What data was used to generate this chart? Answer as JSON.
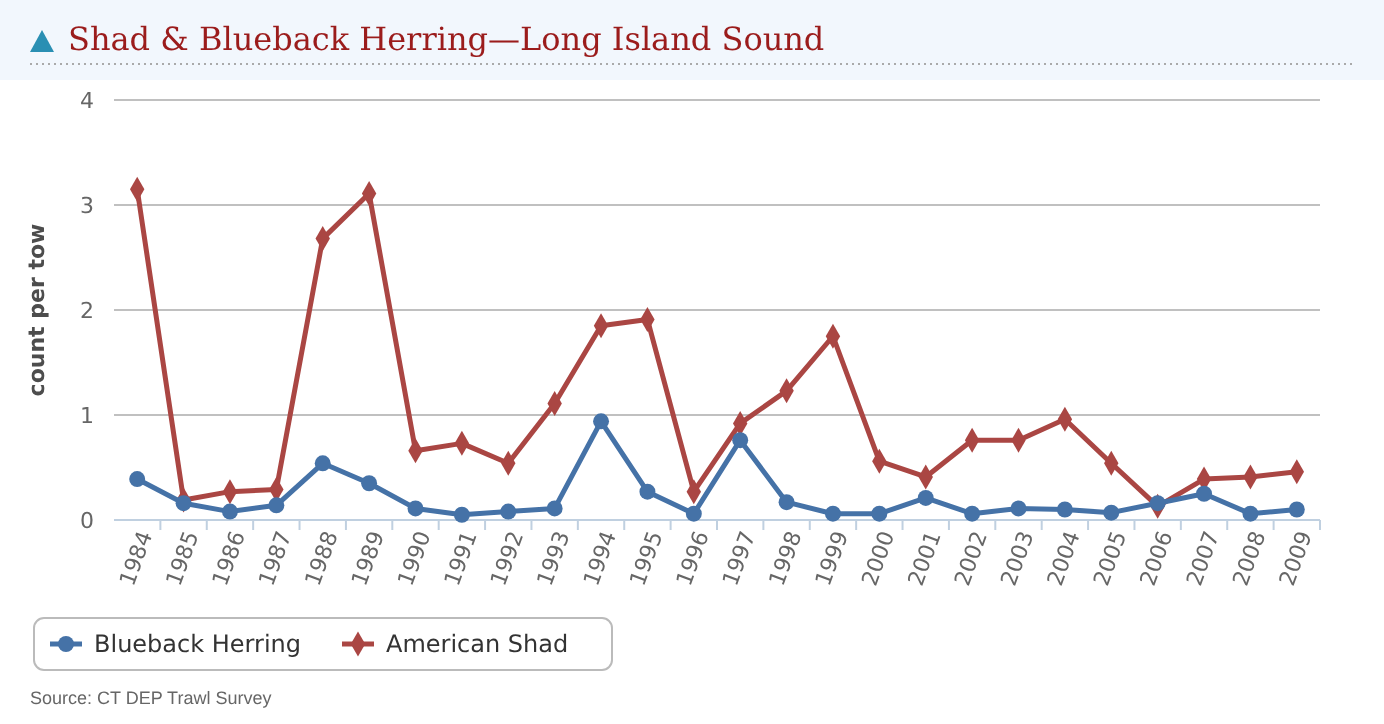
{
  "chart_data": {
    "type": "line",
    "title": "Shad & Blueback Herring—Long Island Sound",
    "ylabel": "count per tow",
    "annotations": [
      "Source: CT DEP Trawl Survey"
    ],
    "categories": [
      "1984",
      "1985",
      "1986",
      "1987",
      "1988",
      "1989",
      "1990",
      "1991",
      "1992",
      "1993",
      "1994",
      "1995",
      "1996",
      "1997",
      "1998",
      "1999",
      "2000",
      "2001",
      "2002",
      "2003",
      "2004",
      "2005",
      "2006",
      "2007",
      "2008",
      "2009"
    ],
    "series": [
      {
        "name": "Blueback Herring",
        "color": "#4572a7",
        "marker": "circle",
        "values": [
          0.39,
          0.16,
          0.08,
          0.14,
          0.54,
          0.35,
          0.11,
          0.05,
          0.08,
          0.11,
          0.94,
          0.27,
          0.06,
          0.76,
          0.17,
          0.06,
          0.06,
          0.21,
          0.06,
          0.11,
          0.1,
          0.07,
          0.16,
          0.25,
          0.06,
          0.1
        ]
      },
      {
        "name": "American Shad",
        "color": "#aa4643",
        "marker": "diamond",
        "values": [
          3.15,
          0.19,
          0.27,
          0.29,
          2.68,
          3.11,
          0.66,
          0.73,
          0.54,
          1.11,
          1.85,
          1.91,
          0.27,
          0.92,
          1.23,
          1.75,
          0.56,
          0.41,
          0.76,
          0.76,
          0.96,
          0.54,
          0.13,
          0.39,
          0.41,
          0.46
        ]
      }
    ],
    "ylim": [
      0,
      4
    ],
    "yticks": [
      0,
      1,
      2,
      3,
      4
    ],
    "grid": "y",
    "legend": "bottom",
    "line_style": "solid"
  }
}
